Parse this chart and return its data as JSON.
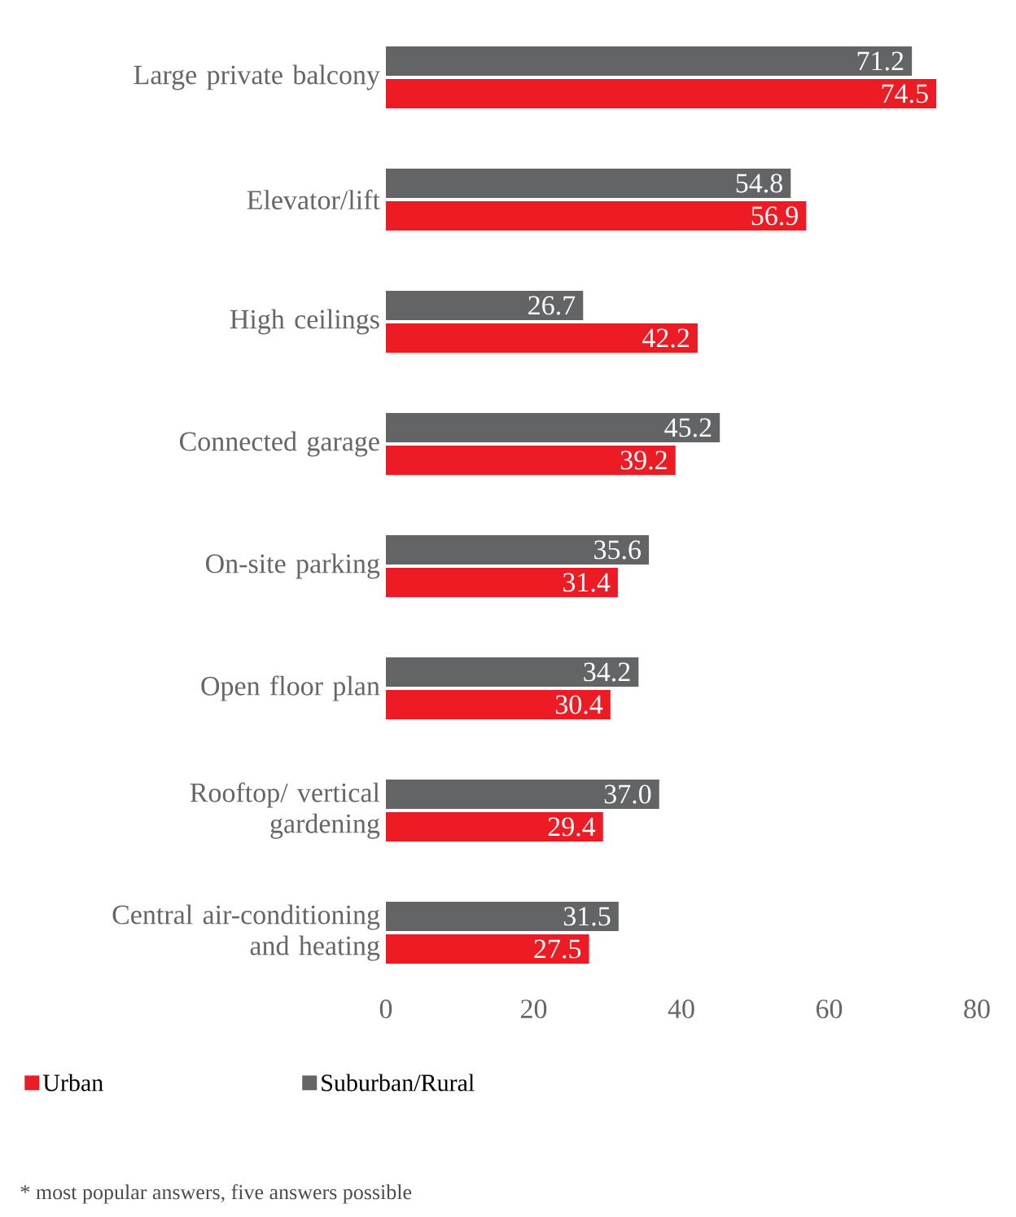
{
  "chart_data": {
    "type": "bar",
    "orientation": "horizontal",
    "categories": [
      "Large private balcony",
      "Elevator/lift",
      "High ceilings",
      "Connected garage",
      "On-site parking",
      "Open floor plan",
      "Rooftop/ vertical gardening",
      "Central air-conditioning and heating"
    ],
    "series": [
      {
        "name": "Urban",
        "color": "#ed1c24",
        "values": [
          74.5,
          56.9,
          42.2,
          39.2,
          31.4,
          30.4,
          29.4,
          27.5
        ],
        "value_labels": [
          "74.5",
          "56.9",
          "42.2",
          "39.2",
          "31.4",
          "30.4",
          "29.4",
          "27.5"
        ]
      },
      {
        "name": "Suburban/Rural",
        "color": "#636466",
        "values": [
          71.2,
          54.8,
          26.7,
          45.2,
          35.6,
          34.2,
          37.0,
          31.5
        ],
        "value_labels": [
          "71.2",
          "54.8",
          "26.7",
          "45.2",
          "35.6",
          "34.2",
          "37.0",
          "31.5"
        ]
      }
    ],
    "xlim": [
      0,
      80
    ],
    "xticks": [
      0,
      20,
      40,
      60,
      80
    ],
    "legend": "bottom",
    "annotations": [
      "* most popular answers, five answers possible"
    ]
  }
}
